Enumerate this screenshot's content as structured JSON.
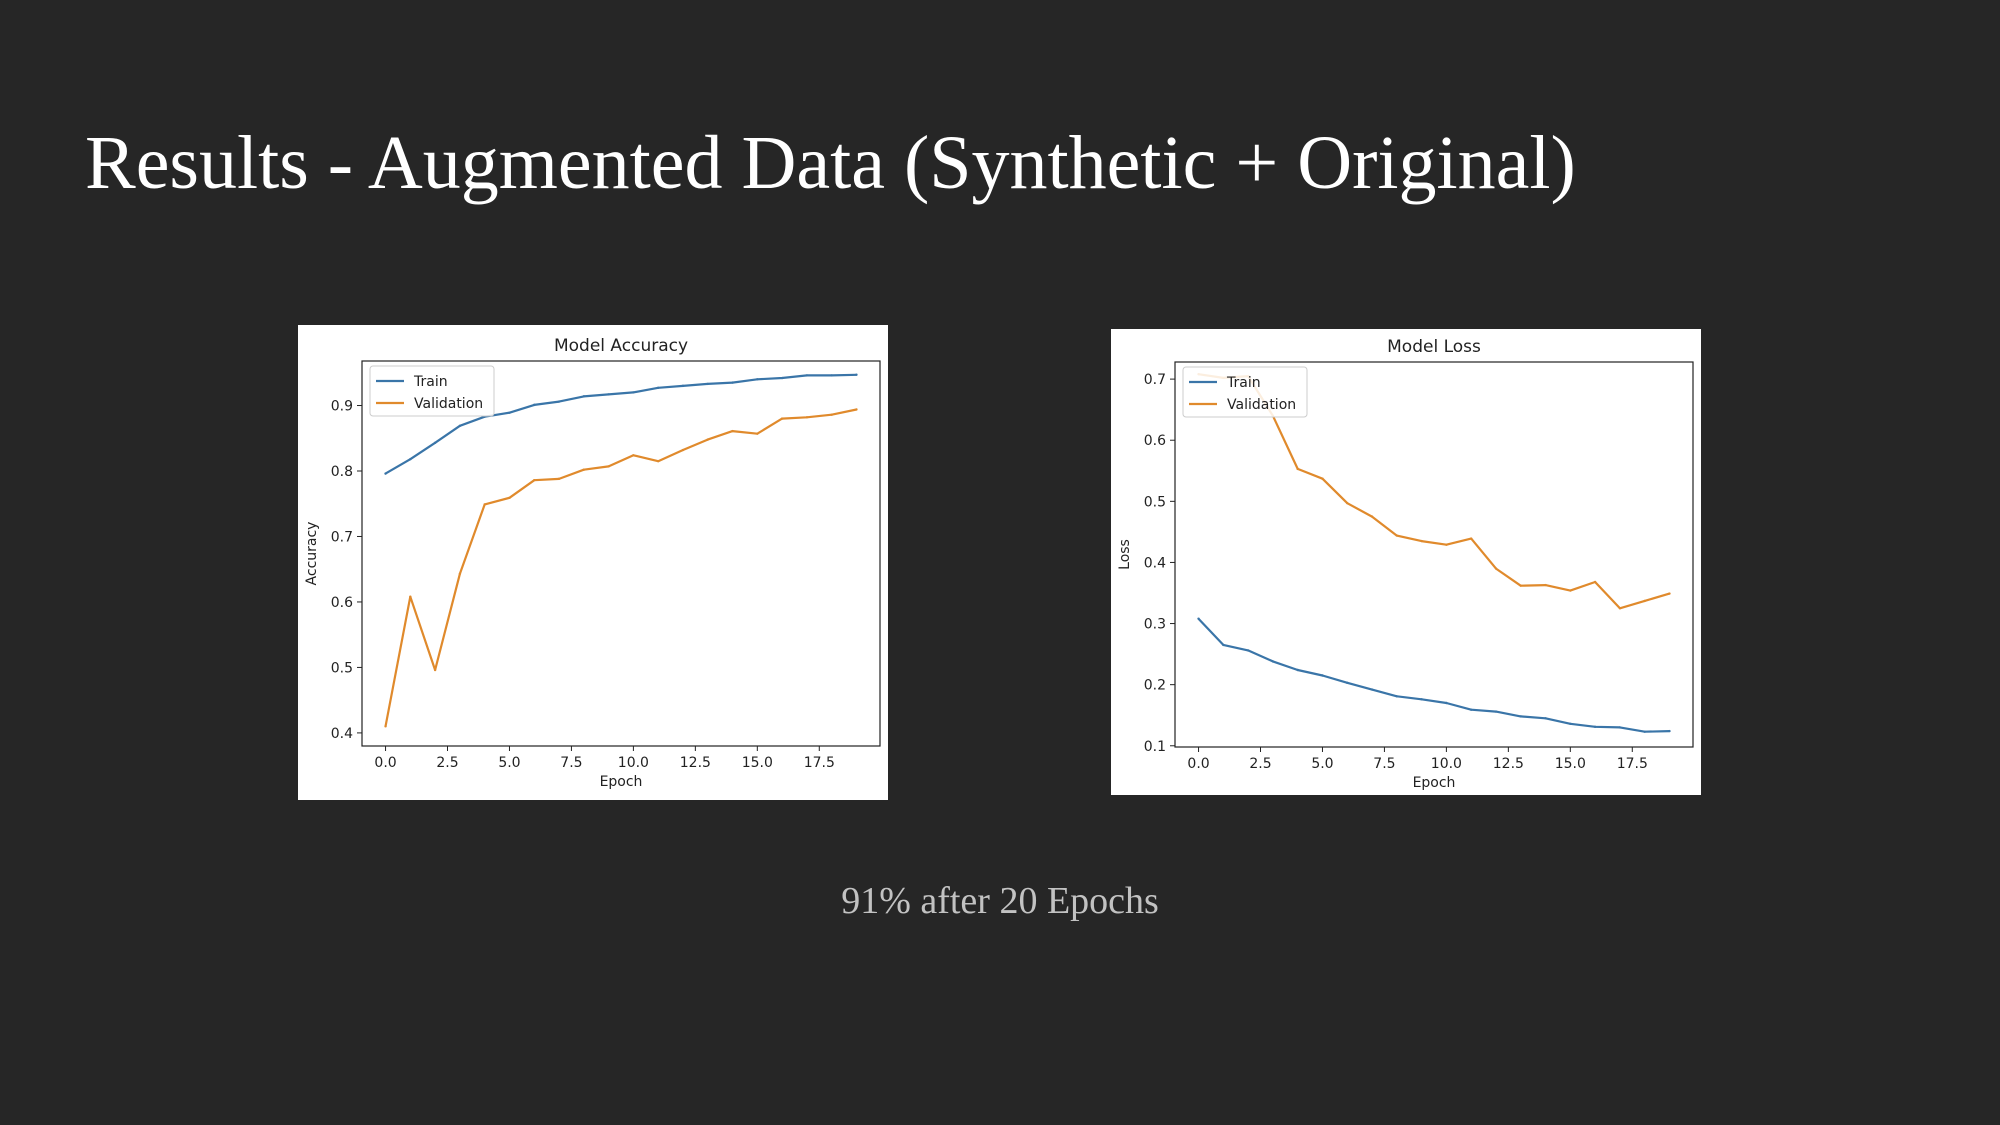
{
  "slide": {
    "title": "Results - Augmented Data (Synthetic + Original)",
    "caption": "91% after 20 Epochs"
  },
  "colors": {
    "background": "#262626",
    "train": "#3a75a8",
    "validation": "#e08a2c"
  },
  "chart_data": [
    {
      "id": "accuracy",
      "type": "line",
      "title": "Model Accuracy",
      "xlabel": "Epoch",
      "ylabel": "Accuracy",
      "xlim": [
        -0.95,
        19.95
      ],
      "ylim": [
        0.38,
        0.968
      ],
      "xticks": [
        0,
        2.5,
        5,
        7.5,
        10,
        12.5,
        15,
        17.5
      ],
      "xtick_labels": [
        "0.0",
        "2.5",
        "5.0",
        "7.5",
        "10.0",
        "12.5",
        "15.0",
        "17.5"
      ],
      "yticks": [
        0.4,
        0.5,
        0.6,
        0.7,
        0.8,
        0.9
      ],
      "ytick_labels": [
        "0.4",
        "0.5",
        "0.6",
        "0.7",
        "0.8",
        "0.9"
      ],
      "legend": "top-left",
      "grid": false,
      "x": [
        0,
        1,
        2,
        3,
        4,
        5,
        6,
        7,
        8,
        9,
        10,
        11,
        12,
        13,
        14,
        15,
        16,
        17,
        18,
        19
      ],
      "series": [
        {
          "name": "Train",
          "color": "#3a75a8",
          "values": [
            0.796,
            0.818,
            0.843,
            0.869,
            0.883,
            0.889,
            0.901,
            0.906,
            0.914,
            0.917,
            0.92,
            0.927,
            0.93,
            0.933,
            0.935,
            0.94,
            0.942,
            0.946,
            0.946,
            0.947
          ]
        },
        {
          "name": "Validation",
          "color": "#e08a2c",
          "values": [
            0.41,
            0.608,
            0.496,
            0.643,
            0.749,
            0.759,
            0.786,
            0.788,
            0.802,
            0.807,
            0.824,
            0.815,
            0.832,
            0.848,
            0.861,
            0.857,
            0.88,
            0.882,
            0.886,
            0.894
          ]
        }
      ]
    },
    {
      "id": "loss",
      "type": "line",
      "title": "Model Loss",
      "xlabel": "Epoch",
      "ylabel": "Loss",
      "xlim": [
        -0.95,
        19.95
      ],
      "ylim": [
        0.098,
        0.728
      ],
      "xticks": [
        0,
        2.5,
        5,
        7.5,
        10,
        12.5,
        15,
        17.5
      ],
      "xtick_labels": [
        "0.0",
        "2.5",
        "5.0",
        "7.5",
        "10.0",
        "12.5",
        "15.0",
        "17.5"
      ],
      "yticks": [
        0.1,
        0.2,
        0.3,
        0.4,
        0.5,
        0.6,
        0.7
      ],
      "ytick_labels": [
        "0.1",
        "0.2",
        "0.3",
        "0.4",
        "0.5",
        "0.6",
        "0.7"
      ],
      "legend": "top-left",
      "grid": false,
      "x": [
        0,
        1,
        2,
        3,
        4,
        5,
        6,
        7,
        8,
        9,
        10,
        11,
        12,
        13,
        14,
        15,
        16,
        17,
        18,
        19
      ],
      "series": [
        {
          "name": "Train",
          "color": "#3a75a8",
          "values": [
            0.308,
            0.265,
            0.256,
            0.238,
            0.224,
            0.215,
            0.203,
            0.192,
            0.181,
            0.176,
            0.17,
            0.159,
            0.156,
            0.148,
            0.145,
            0.136,
            0.131,
            0.13,
            0.123,
            0.124
          ]
        },
        {
          "name": "Validation",
          "color": "#e08a2c",
          "values": [
            0.708,
            0.702,
            0.705,
            0.64,
            0.553,
            0.537,
            0.497,
            0.475,
            0.444,
            0.435,
            0.429,
            0.439,
            0.39,
            0.362,
            0.363,
            0.354,
            0.368,
            0.325,
            0.337,
            0.349
          ]
        }
      ]
    }
  ]
}
